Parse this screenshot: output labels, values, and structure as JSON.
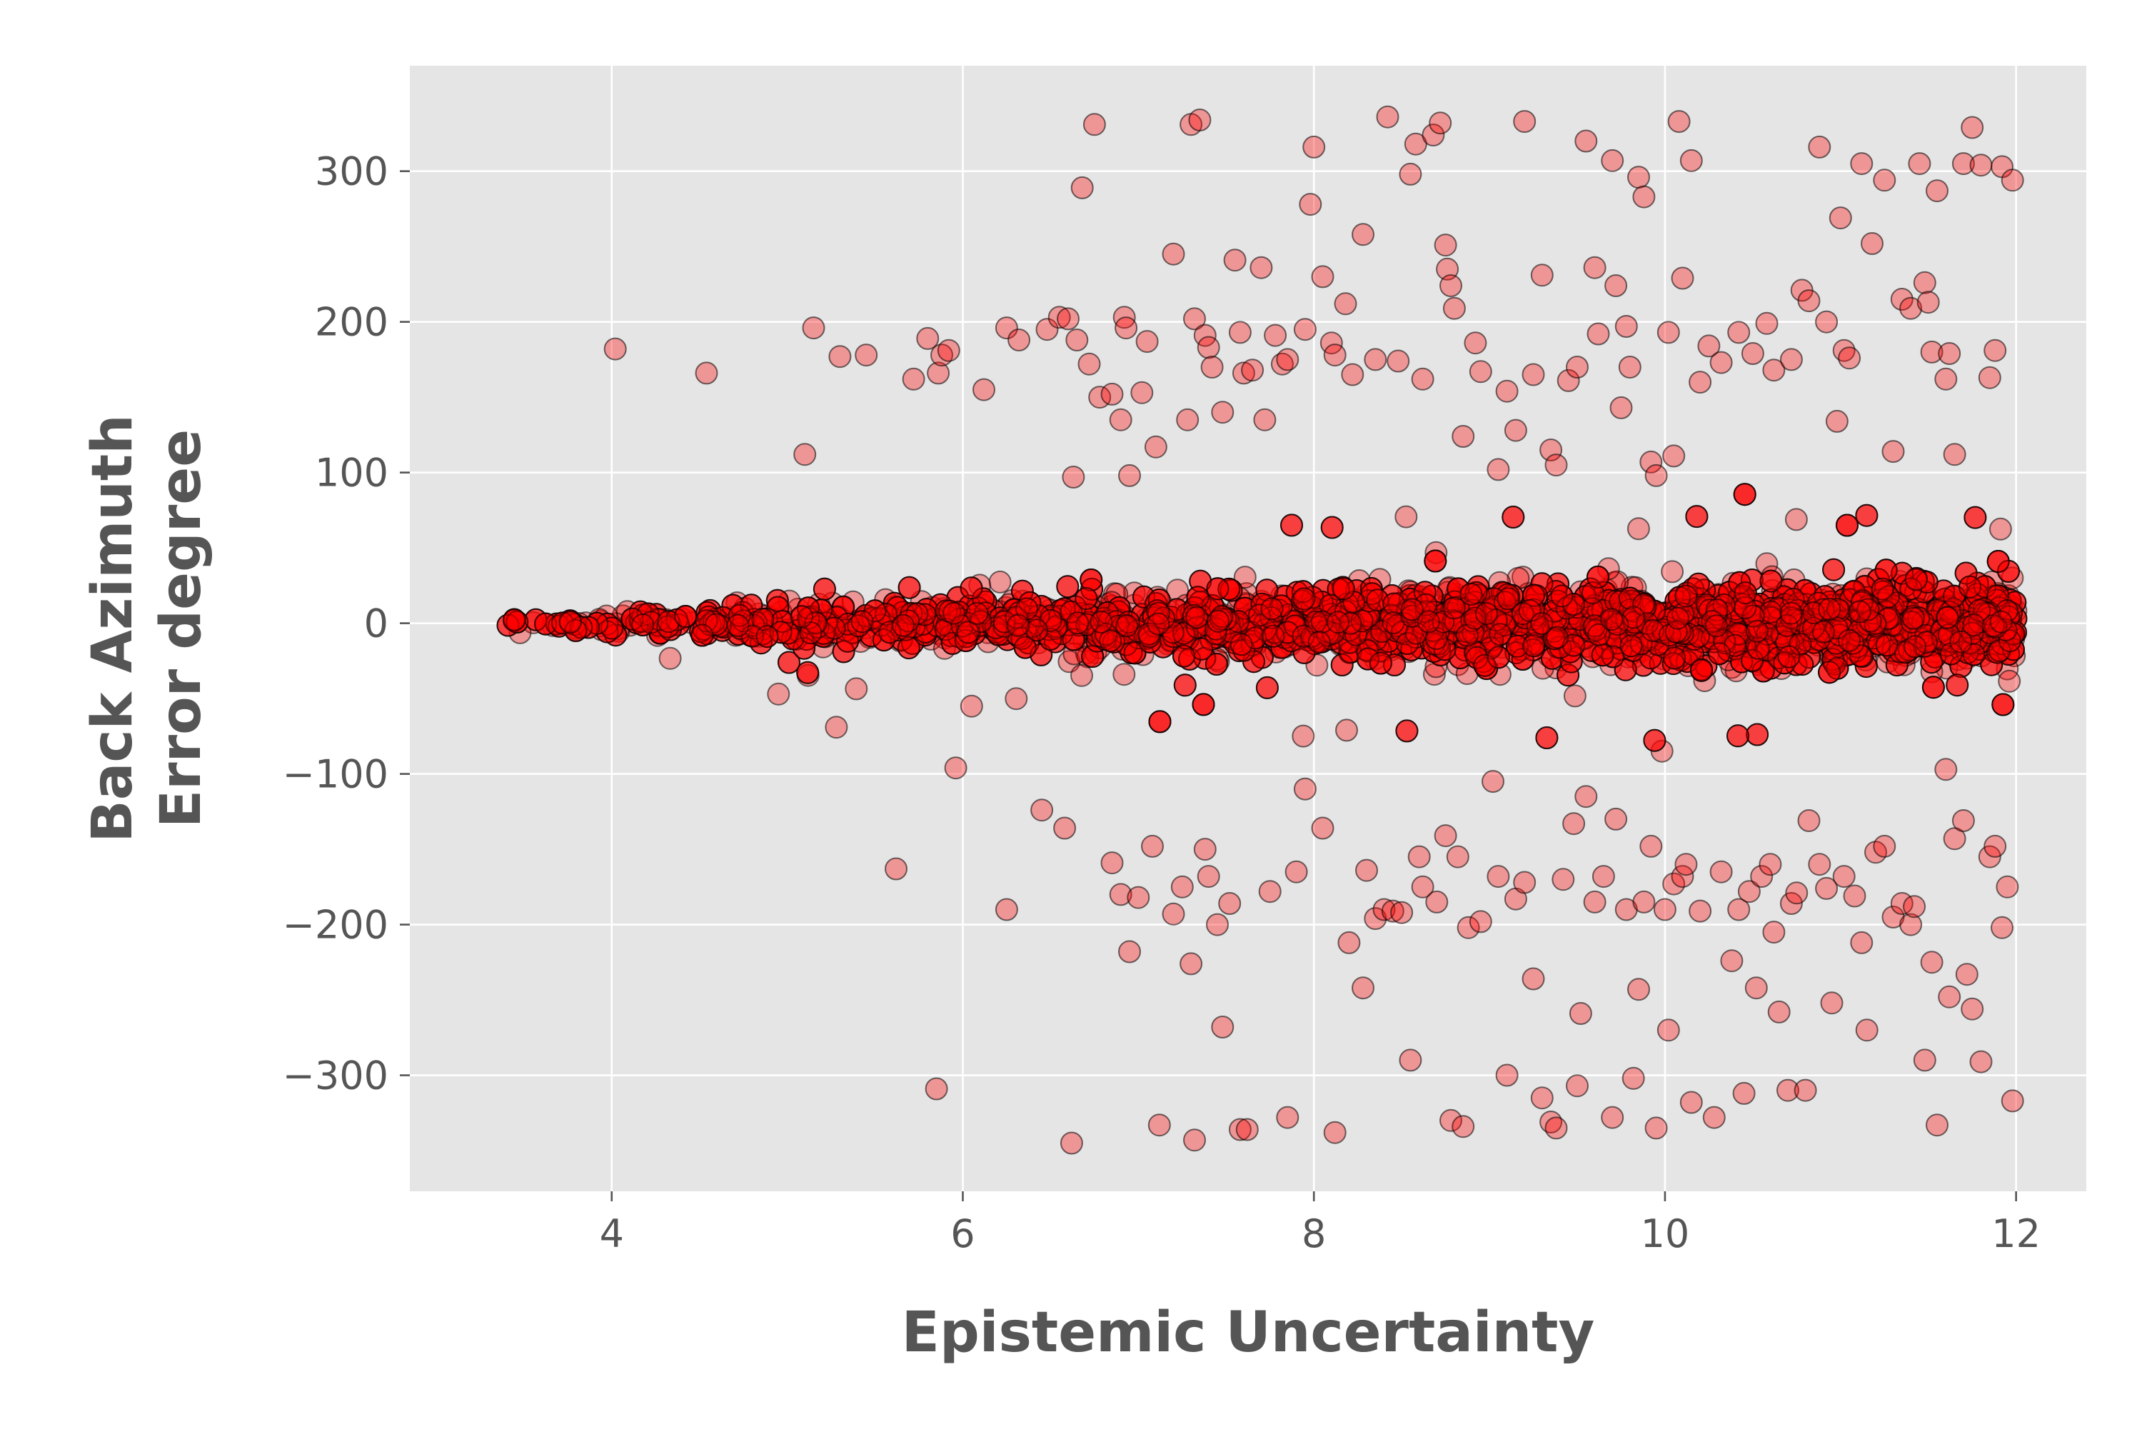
{
  "chart_data": {
    "type": "scatter",
    "title": "",
    "xlabel": "Epistemic Uncertainty",
    "ylabel_lines": [
      "Back Azimuth",
      "Error degree"
    ],
    "xlim": [
      2.85,
      12.4
    ],
    "ylim": [
      -377,
      370
    ],
    "xticks": [
      4,
      6,
      8,
      10,
      12
    ],
    "yticks": [
      -300,
      -200,
      -100,
      0,
      100,
      200,
      300
    ],
    "xtick_labels": [
      "4",
      "6",
      "8",
      "10",
      "12"
    ],
    "ytick_labels": [
      "−300",
      "−200",
      "−100",
      "0",
      "100",
      "200",
      "300"
    ],
    "grid": true,
    "legend": "none",
    "colors": {
      "plot_background": "#e5e5e5",
      "grid": "#ffffff",
      "marker_fill": "#ff0000",
      "marker_edge": "#000000",
      "text": "#555555"
    },
    "marker_alpha": 0.35,
    "series": [
      {
        "x_range": [
          3.3,
          12.0
        ],
        "note_points": "dense band around 0; spread grows with uncertainty",
        "core_spread": [
          {
            "x": 3.3,
            "y_halfwidth": 3
          },
          {
            "x": 4.0,
            "y_halfwidth": 10
          },
          {
            "x": 5.0,
            "y_halfwidth": 22
          },
          {
            "x": 6.0,
            "y_halfwidth": 30
          },
          {
            "x": 8.0,
            "y_halfwidth": 40
          },
          {
            "x": 10.0,
            "y_halfwidth": 45
          },
          {
            "x": 12.0,
            "y_halfwidth": 48
          }
        ],
        "outliers": [
          [
            4.02,
            182
          ],
          [
            4.54,
            166
          ],
          [
            5.1,
            112
          ],
          [
            5.15,
            196
          ],
          [
            5.3,
            177
          ],
          [
            5.45,
            178
          ],
          [
            5.72,
            162
          ],
          [
            5.8,
            189
          ],
          [
            5.86,
            166
          ],
          [
            5.88,
            178
          ],
          [
            5.92,
            181
          ],
          [
            6.12,
            155
          ],
          [
            6.25,
            196
          ],
          [
            6.32,
            188
          ],
          [
            6.48,
            195
          ],
          [
            6.55,
            203
          ],
          [
            6.6,
            202
          ],
          [
            6.63,
            97
          ],
          [
            6.65,
            188
          ],
          [
            6.68,
            289
          ],
          [
            6.72,
            172
          ],
          [
            6.75,
            331
          ],
          [
            6.78,
            150
          ],
          [
            6.85,
            152
          ],
          [
            6.9,
            135
          ],
          [
            6.92,
            203
          ],
          [
            6.93,
            196
          ],
          [
            6.95,
            98
          ],
          [
            7.02,
            153
          ],
          [
            7.05,
            187
          ],
          [
            7.1,
            117
          ],
          [
            7.2,
            245
          ],
          [
            7.28,
            135
          ],
          [
            7.3,
            331
          ],
          [
            7.32,
            202
          ],
          [
            7.35,
            334
          ],
          [
            7.38,
            191
          ],
          [
            7.4,
            183
          ],
          [
            7.42,
            170
          ],
          [
            7.48,
            140
          ],
          [
            7.55,
            241
          ],
          [
            7.58,
            193
          ],
          [
            7.6,
            166
          ],
          [
            7.65,
            168
          ],
          [
            7.7,
            236
          ],
          [
            7.72,
            135
          ],
          [
            7.78,
            191
          ],
          [
            7.82,
            172
          ],
          [
            7.85,
            175
          ],
          [
            7.95,
            195
          ],
          [
            7.98,
            278
          ],
          [
            8.0,
            316
          ],
          [
            8.05,
            230
          ],
          [
            8.1,
            186
          ],
          [
            8.12,
            178
          ],
          [
            8.18,
            212
          ],
          [
            8.22,
            165
          ],
          [
            8.28,
            258
          ],
          [
            8.35,
            175
          ],
          [
            8.42,
            336
          ],
          [
            8.48,
            174
          ],
          [
            8.55,
            298
          ],
          [
            8.58,
            318
          ],
          [
            8.62,
            162
          ],
          [
            8.68,
            324
          ],
          [
            8.72,
            332
          ],
          [
            8.75,
            251
          ],
          [
            8.76,
            235
          ],
          [
            8.78,
            224
          ],
          [
            8.8,
            209
          ],
          [
            8.85,
            124
          ],
          [
            8.92,
            186
          ],
          [
            8.95,
            167
          ],
          [
            9.05,
            102
          ],
          [
            9.1,
            154
          ],
          [
            9.15,
            128
          ],
          [
            9.2,
            333
          ],
          [
            9.25,
            165
          ],
          [
            9.3,
            231
          ],
          [
            9.35,
            115
          ],
          [
            9.38,
            105
          ],
          [
            9.45,
            161
          ],
          [
            9.5,
            170
          ],
          [
            9.55,
            320
          ],
          [
            9.6,
            236
          ],
          [
            9.62,
            192
          ],
          [
            9.7,
            307
          ],
          [
            9.72,
            224
          ],
          [
            9.75,
            143
          ],
          [
            9.78,
            197
          ],
          [
            9.8,
            170
          ],
          [
            9.85,
            296
          ],
          [
            9.88,
            283
          ],
          [
            9.92,
            107
          ],
          [
            9.95,
            98
          ],
          [
            10.02,
            193
          ],
          [
            10.05,
            111
          ],
          [
            10.08,
            333
          ],
          [
            10.1,
            229
          ],
          [
            10.15,
            307
          ],
          [
            10.2,
            160
          ],
          [
            10.25,
            184
          ],
          [
            10.32,
            173
          ],
          [
            10.42,
            193
          ],
          [
            10.5,
            179
          ],
          [
            10.58,
            199
          ],
          [
            10.62,
            168
          ],
          [
            10.72,
            175
          ],
          [
            10.78,
            221
          ],
          [
            10.82,
            214
          ],
          [
            10.88,
            316
          ],
          [
            10.92,
            200
          ],
          [
            10.98,
            134
          ],
          [
            11.0,
            269
          ],
          [
            11.02,
            181
          ],
          [
            11.05,
            176
          ],
          [
            11.12,
            305
          ],
          [
            11.18,
            252
          ],
          [
            11.25,
            294
          ],
          [
            11.3,
            114
          ],
          [
            11.35,
            215
          ],
          [
            11.4,
            209
          ],
          [
            11.45,
            305
          ],
          [
            11.48,
            226
          ],
          [
            11.5,
            213
          ],
          [
            11.52,
            180
          ],
          [
            11.55,
            287
          ],
          [
            11.6,
            162
          ],
          [
            11.62,
            179
          ],
          [
            11.65,
            112
          ],
          [
            11.7,
            305
          ],
          [
            11.75,
            329
          ],
          [
            11.8,
            304
          ],
          [
            11.85,
            163
          ],
          [
            11.88,
            181
          ],
          [
            11.92,
            303
          ],
          [
            11.98,
            294
          ],
          [
            4.95,
            -47
          ],
          [
            5.28,
            -69
          ],
          [
            5.62,
            -163
          ],
          [
            5.85,
            -309
          ],
          [
            5.96,
            -96
          ],
          [
            6.05,
            -55
          ],
          [
            6.25,
            -190
          ],
          [
            6.45,
            -124
          ],
          [
            6.58,
            -136
          ],
          [
            6.62,
            -345
          ],
          [
            6.85,
            -159
          ],
          [
            6.9,
            -180
          ],
          [
            6.95,
            -218
          ],
          [
            7.0,
            -182
          ],
          [
            7.08,
            -148
          ],
          [
            7.12,
            -333
          ],
          [
            7.2,
            -193
          ],
          [
            7.25,
            -175
          ],
          [
            7.3,
            -226
          ],
          [
            7.32,
            -343
          ],
          [
            7.38,
            -150
          ],
          [
            7.4,
            -168
          ],
          [
            7.45,
            -200
          ],
          [
            7.48,
            -268
          ],
          [
            7.52,
            -186
          ],
          [
            7.58,
            -336
          ],
          [
            7.62,
            -336
          ],
          [
            7.75,
            -178
          ],
          [
            7.85,
            -328
          ],
          [
            7.9,
            -165
          ],
          [
            7.95,
            -110
          ],
          [
            8.05,
            -136
          ],
          [
            8.12,
            -338
          ],
          [
            8.2,
            -212
          ],
          [
            8.28,
            -242
          ],
          [
            8.3,
            -164
          ],
          [
            8.35,
            -196
          ],
          [
            8.4,
            -190
          ],
          [
            8.45,
            -191
          ],
          [
            8.5,
            -192
          ],
          [
            8.55,
            -290
          ],
          [
            8.6,
            -155
          ],
          [
            8.62,
            -175
          ],
          [
            8.7,
            -185
          ],
          [
            8.75,
            -141
          ],
          [
            8.78,
            -330
          ],
          [
            8.82,
            -155
          ],
          [
            8.85,
            -334
          ],
          [
            8.88,
            -202
          ],
          [
            8.95,
            -198
          ],
          [
            9.02,
            -105
          ],
          [
            9.05,
            -168
          ],
          [
            9.1,
            -300
          ],
          [
            9.15,
            -183
          ],
          [
            9.2,
            -172
          ],
          [
            9.25,
            -236
          ],
          [
            9.3,
            -315
          ],
          [
            9.35,
            -331
          ],
          [
            9.38,
            -335
          ],
          [
            9.42,
            -170
          ],
          [
            9.48,
            -133
          ],
          [
            9.5,
            -307
          ],
          [
            9.52,
            -259
          ],
          [
            9.55,
            -115
          ],
          [
            9.6,
            -185
          ],
          [
            9.65,
            -168
          ],
          [
            9.7,
            -328
          ],
          [
            9.72,
            -130
          ],
          [
            9.78,
            -190
          ],
          [
            9.82,
            -302
          ],
          [
            9.85,
            -243
          ],
          [
            9.88,
            -185
          ],
          [
            9.92,
            -148
          ],
          [
            9.95,
            -335
          ],
          [
            10.0,
            -190
          ],
          [
            10.02,
            -270
          ],
          [
            10.05,
            -173
          ],
          [
            10.1,
            -168
          ],
          [
            10.12,
            -160
          ],
          [
            10.15,
            -318
          ],
          [
            10.2,
            -191
          ],
          [
            10.28,
            -328
          ],
          [
            10.32,
            -165
          ],
          [
            10.38,
            -224
          ],
          [
            10.42,
            -190
          ],
          [
            10.45,
            -312
          ],
          [
            10.48,
            -178
          ],
          [
            10.52,
            -242
          ],
          [
            10.55,
            -168
          ],
          [
            10.6,
            -160
          ],
          [
            10.62,
            -205
          ],
          [
            10.65,
            -258
          ],
          [
            10.7,
            -310
          ],
          [
            10.72,
            -186
          ],
          [
            10.75,
            -179
          ],
          [
            10.8,
            -310
          ],
          [
            10.82,
            -131
          ],
          [
            10.88,
            -160
          ],
          [
            10.92,
            -176
          ],
          [
            10.95,
            -252
          ],
          [
            11.02,
            -168
          ],
          [
            11.08,
            -181
          ],
          [
            11.12,
            -212
          ],
          [
            11.15,
            -270
          ],
          [
            11.2,
            -152
          ],
          [
            11.25,
            -148
          ],
          [
            11.3,
            -195
          ],
          [
            11.35,
            -186
          ],
          [
            11.4,
            -200
          ],
          [
            11.42,
            -188
          ],
          [
            11.48,
            -290
          ],
          [
            11.52,
            -225
          ],
          [
            11.55,
            -333
          ],
          [
            11.6,
            -97
          ],
          [
            11.62,
            -248
          ],
          [
            11.65,
            -143
          ],
          [
            11.7,
            -131
          ],
          [
            11.72,
            -233
          ],
          [
            11.75,
            -256
          ],
          [
            11.8,
            -291
          ],
          [
            11.85,
            -155
          ],
          [
            11.88,
            -148
          ],
          [
            11.92,
            -202
          ],
          [
            11.95,
            -175
          ],
          [
            11.98,
            -317
          ]
        ]
      }
    ]
  }
}
